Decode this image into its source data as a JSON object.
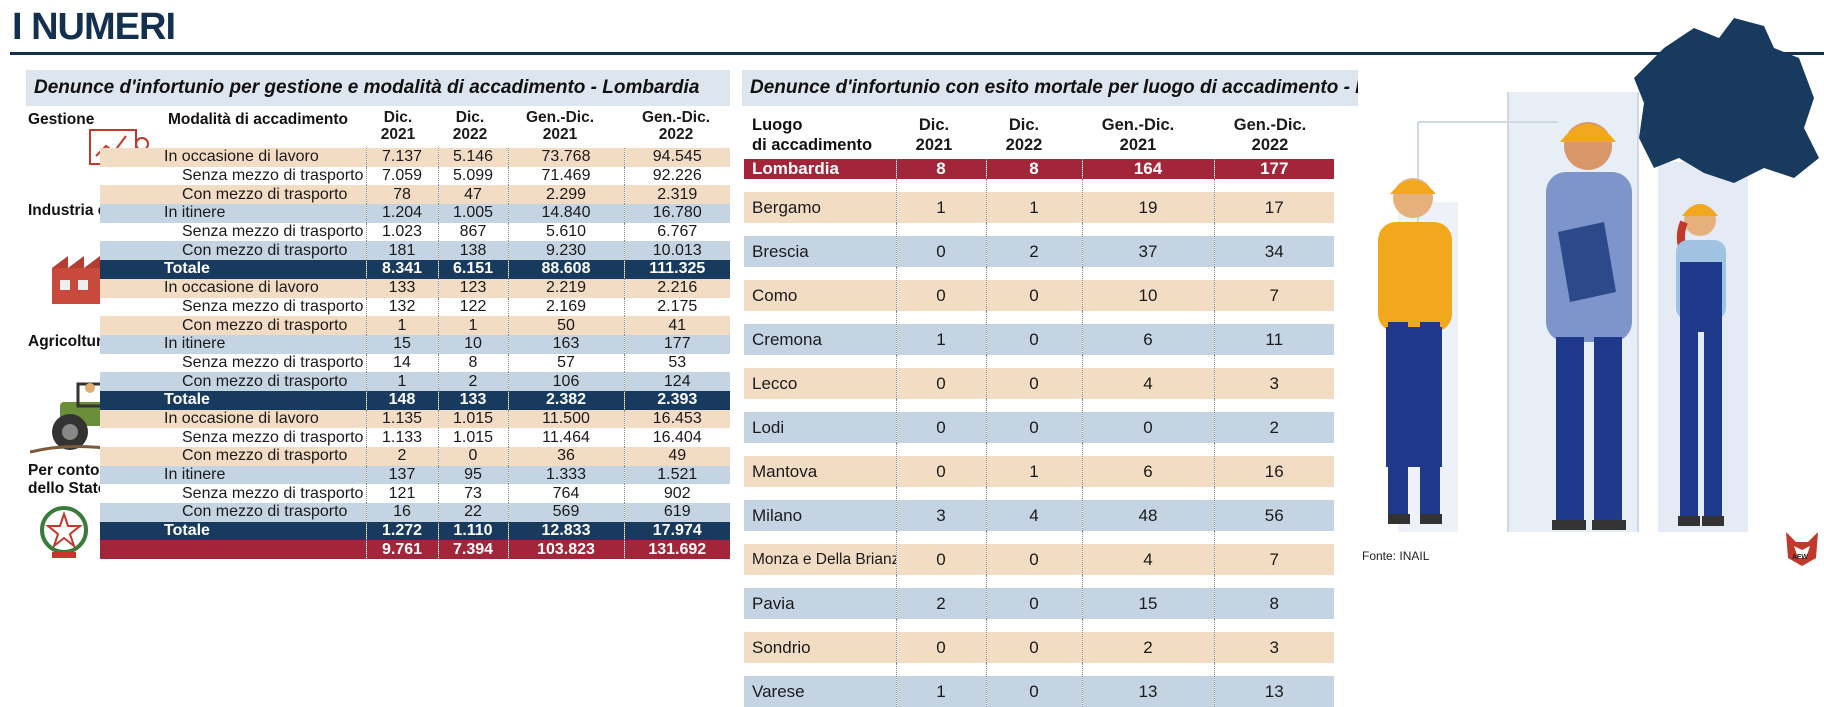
{
  "page": {
    "title": "I NUMERI",
    "source": "Fonte: INAIL",
    "logo_text": "AFW"
  },
  "left": {
    "heading": "Denunce d'infortunio per gestione e modalità di accadimento - Lombardia",
    "col_gestione": "Gestione",
    "col_modalita": "Modalità di accadimento",
    "col_heads": [
      {
        "l1": "Dic.",
        "l2": "2021"
      },
      {
        "l1": "Dic.",
        "l2": "2022"
      },
      {
        "l1": "Gen.-Dic.",
        "l2": "2021"
      },
      {
        "l1": "Gen.-Dic.",
        "l2": "2022"
      }
    ],
    "groups": [
      "Industria e Servizi",
      "Agricoltura",
      "Per conto",
      "dello Stato"
    ],
    "rows": [
      {
        "label": "In occasione di lavoro",
        "values": [
          "7.137",
          "5.146",
          "73.768",
          "94.545"
        ]
      },
      {
        "label": "Senza mezzo di trasporto",
        "values": [
          "7.059",
          "5.099",
          "71.469",
          "92.226"
        ]
      },
      {
        "label": "Con mezzo di trasporto",
        "values": [
          "78",
          "47",
          "2.299",
          "2.319"
        ]
      },
      {
        "label": "In itinere",
        "values": [
          "1.204",
          "1.005",
          "14.840",
          "16.780"
        ]
      },
      {
        "label": "Senza mezzo di trasporto",
        "values": [
          "1.023",
          "867",
          "5.610",
          "6.767"
        ]
      },
      {
        "label": "Con mezzo di trasporto",
        "values": [
          "181",
          "138",
          "9.230",
          "10.013"
        ]
      },
      {
        "label": "Totale",
        "values": [
          "8.341",
          "6.151",
          "88.608",
          "111.325"
        ]
      },
      {
        "label": "In occasione di lavoro",
        "values": [
          "133",
          "123",
          "2.219",
          "2.216"
        ]
      },
      {
        "label": "Senza mezzo di trasporto",
        "values": [
          "132",
          "122",
          "2.169",
          "2.175"
        ]
      },
      {
        "label": "Con mezzo di trasporto",
        "values": [
          "1",
          "1",
          "50",
          "41"
        ]
      },
      {
        "label": "In itinere",
        "values": [
          "15",
          "10",
          "163",
          "177"
        ]
      },
      {
        "label": "Senza mezzo di trasporto",
        "values": [
          "14",
          "8",
          "57",
          "53"
        ]
      },
      {
        "label": "Con mezzo di trasporto",
        "values": [
          "1",
          "2",
          "106",
          "124"
        ]
      },
      {
        "label": "Totale",
        "values": [
          "148",
          "133",
          "2.382",
          "2.393"
        ]
      },
      {
        "label": "In occasione di lavoro",
        "values": [
          "1.135",
          "1.015",
          "11.500",
          "16.453"
        ]
      },
      {
        "label": "Senza mezzo di trasporto",
        "values": [
          "1.133",
          "1.015",
          "11.464",
          "16.404"
        ]
      },
      {
        "label": "Con mezzo di trasporto",
        "values": [
          "2",
          "0",
          "36",
          "49"
        ]
      },
      {
        "label": "In itinere",
        "values": [
          "137",
          "95",
          "1.333",
          "1.521"
        ]
      },
      {
        "label": "Senza mezzo di trasporto",
        "values": [
          "121",
          "73",
          "764",
          "902"
        ]
      },
      {
        "label": "Con mezzo di trasporto",
        "values": [
          "16",
          "22",
          "569",
          "619"
        ]
      },
      {
        "label": "Totale",
        "values": [
          "1.272",
          "1.110",
          "12.833",
          "17.974"
        ]
      },
      {
        "label": "",
        "values": [
          "9.761",
          "7.394",
          "103.823",
          "131.692"
        ]
      }
    ]
  },
  "right": {
    "heading": "Denunce d'infortunio con esito mortale per luogo di accadimento - Lombardia",
    "col_luogo_1": "Luogo",
    "col_luogo_2": "di accadimento",
    "col_heads": [
      {
        "l1": "Dic.",
        "l2": "2021"
      },
      {
        "l1": "Dic.",
        "l2": "2022"
      },
      {
        "l1": "Gen.-Dic.",
        "l2": "2021"
      },
      {
        "l1": "Gen.-Dic.",
        "l2": "2022"
      }
    ],
    "rows": [
      {
        "place": "Lombardia",
        "values": [
          "8",
          "8",
          "164",
          "177"
        ]
      },
      {
        "place": "Bergamo",
        "values": [
          "1",
          "1",
          "19",
          "17"
        ]
      },
      {
        "place": "Brescia",
        "values": [
          "0",
          "2",
          "37",
          "34"
        ]
      },
      {
        "place": "Como",
        "values": [
          "0",
          "0",
          "10",
          "7"
        ]
      },
      {
        "place": "Cremona",
        "values": [
          "1",
          "0",
          "6",
          "11"
        ]
      },
      {
        "place": "Lecco",
        "values": [
          "0",
          "0",
          "4",
          "3"
        ]
      },
      {
        "place": "Lodi",
        "values": [
          "0",
          "0",
          "0",
          "2"
        ]
      },
      {
        "place": "Mantova",
        "values": [
          "0",
          "1",
          "6",
          "16"
        ]
      },
      {
        "place": "Milano",
        "values": [
          "3",
          "4",
          "48",
          "56"
        ]
      },
      {
        "place": "Monza e Della Brianza",
        "values": [
          "0",
          "0",
          "4",
          "7"
        ]
      },
      {
        "place": "Pavia",
        "values": [
          "2",
          "0",
          "15",
          "8"
        ]
      },
      {
        "place": "Sondrio",
        "values": [
          "0",
          "0",
          "2",
          "3"
        ]
      },
      {
        "place": "Varese",
        "values": [
          "1",
          "0",
          "13",
          "13"
        ]
      }
    ]
  },
  "colors": {
    "navy": "#14304f",
    "total": "#173a5e",
    "grand": "#a3253a",
    "beige": "#f3dcc4",
    "blue": "#c5d4e3"
  },
  "icons": [
    "chart-presenter-icon",
    "factory-icon",
    "tractor-icon",
    "state-emblem-icon",
    "workers-illustration",
    "lombardia-map-icon"
  ]
}
